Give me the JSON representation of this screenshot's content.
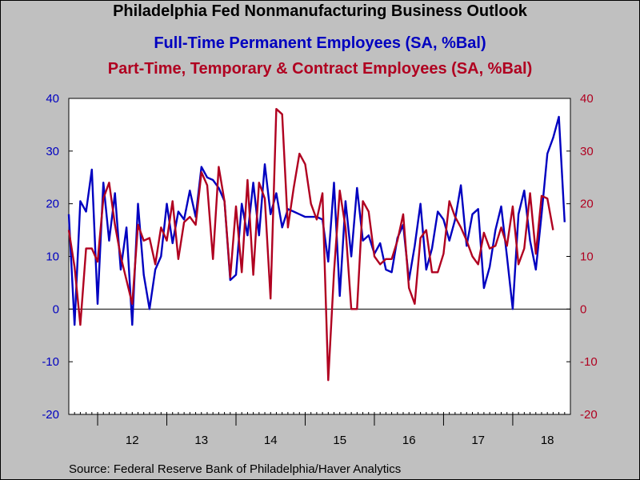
{
  "titles": {
    "main": "Philadelphia Fed Nonmanufacturing Business Outlook",
    "series1": "Full-Time Permanent Employees (SA, %Bal)",
    "series2": "Part-Time, Temporary & Contract Employees (SA, %Bal)"
  },
  "source": "Source:  Federal Reserve Bank of Philadelphia/Haver Analytics",
  "colors": {
    "series1": "#0000c0",
    "series2": "#b00020",
    "plot_bg": "#ffffff",
    "page_bg": "#c0c0c0"
  },
  "chart_data": {
    "type": "line",
    "title": "Philadelphia Fed Nonmanufacturing Business Outlook",
    "x_start": "2011-08",
    "x_end": "2018-11",
    "x_tick_labels": [
      "12",
      "13",
      "14",
      "15",
      "16",
      "17",
      "18"
    ],
    "ylim": [
      -20,
      40
    ],
    "y_ticks": [
      -20,
      -10,
      0,
      10,
      20,
      30,
      40
    ],
    "y_right_ticks": [
      -20,
      -10,
      0,
      10,
      20,
      30,
      40
    ],
    "zero_line": true,
    "grid": false,
    "series": [
      {
        "name": "Full-Time Permanent Employees (SA, %Bal)",
        "axis": "left",
        "values": [
          18,
          -3,
          20.5,
          18.5,
          26.5,
          1,
          24,
          13,
          22,
          7.5,
          15.5,
          -3,
          20,
          6.5,
          0,
          7.5,
          10,
          20,
          12.5,
          18.5,
          17,
          22.5,
          17.5,
          27,
          25,
          24.5,
          23,
          20.5,
          5.5,
          6.5,
          20,
          14,
          24,
          14,
          27.5,
          18,
          22,
          15.5,
          19,
          18.5,
          18,
          17.5,
          17.5,
          17.5,
          17,
          9,
          24,
          2.5,
          20.5,
          10,
          23,
          13,
          14,
          10.5,
          12.5,
          7.5,
          7,
          13.5,
          16,
          5.5,
          12,
          20,
          7.5,
          11.5,
          18.5,
          17,
          13,
          17,
          23.5,
          12,
          18,
          19,
          4,
          8,
          15,
          19.5,
          10,
          0,
          18,
          22.5,
          13,
          7.5,
          18,
          29.5,
          32.5,
          36.5,
          16.5
        ]
      },
      {
        "name": "Part-Time, Temporary & Contract Employees (SA, %Bal)",
        "axis": "right",
        "values": [
          15,
          8,
          -3,
          11.5,
          11.5,
          9,
          21,
          24,
          16,
          10,
          5.5,
          1,
          16,
          13,
          13.5,
          8.5,
          15.5,
          13,
          20.5,
          9.5,
          16.5,
          17.5,
          16,
          26,
          23.5,
          9.5,
          27,
          20.5,
          6,
          19.5,
          7,
          24.5,
          6.5,
          24,
          21,
          2,
          38,
          37,
          15.5,
          23,
          29.5,
          27.5,
          20,
          17,
          22,
          -13.5,
          7,
          22.5,
          15.5,
          0,
          0,
          20.5,
          18.5,
          10,
          8.5,
          9.5,
          9.5,
          13,
          18,
          4,
          1,
          13.5,
          15,
          7,
          7,
          10.5,
          20.5,
          17.5,
          15.5,
          13,
          10,
          8.5,
          14.5,
          11.5,
          12,
          15.5,
          12,
          19.5,
          8.5,
          11.5,
          22,
          10.5,
          21.5,
          21,
          15
        ]
      }
    ]
  }
}
